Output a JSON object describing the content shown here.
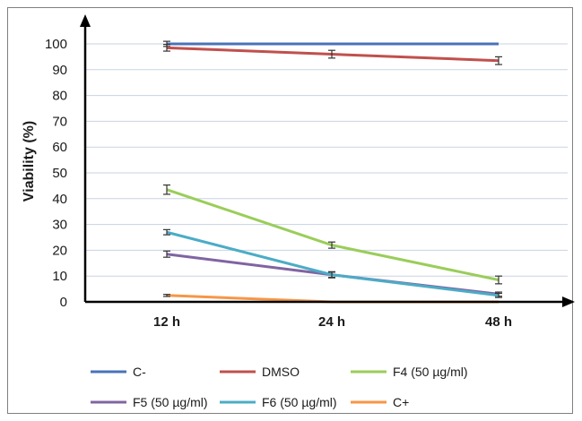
{
  "chart_data": {
    "type": "line",
    "ylabel": "Viability (%)",
    "xlabel": "",
    "ylim": [
      0,
      100
    ],
    "yticks": [
      0,
      10,
      20,
      30,
      40,
      50,
      60,
      70,
      80,
      90,
      100
    ],
    "categories": [
      "12 h",
      "24 h",
      "48 h"
    ],
    "grid": true,
    "legend_position": "bottom",
    "series": [
      {
        "name": "C-",
        "color": "#4a72b8",
        "values": [
          100,
          100,
          100
        ],
        "errors": [
          1,
          0,
          0
        ]
      },
      {
        "name": "DMSO",
        "color": "#c0504d",
        "values": [
          98.5,
          96,
          93.5
        ],
        "errors": [
          1.3,
          1.5,
          1.5
        ]
      },
      {
        "name": "F4 (50 µg/ml)",
        "color": "#9acd5a",
        "values": [
          43.5,
          22,
          8.5
        ],
        "errors": [
          1.8,
          1.2,
          1.5
        ]
      },
      {
        "name": "F5 (50 µg/ml)",
        "color": "#8064a2",
        "values": [
          18.5,
          10.5,
          3
        ],
        "errors": [
          1.2,
          1.2,
          0.8
        ]
      },
      {
        "name": "F6 (50 µg/ml)",
        "color": "#4bacc6",
        "values": [
          27,
          10.5,
          2.5
        ],
        "errors": [
          1,
          1,
          0.8
        ]
      },
      {
        "name": "C+",
        "color": "#f79646",
        "values": [
          2.5,
          0,
          0
        ],
        "errors": [
          0.4,
          0,
          0
        ]
      }
    ]
  }
}
